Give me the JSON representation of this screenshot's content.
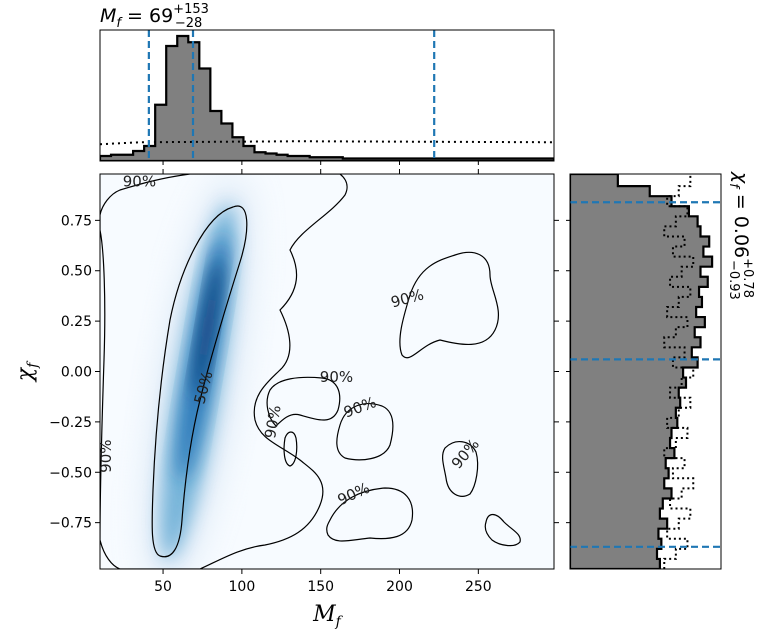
{
  "chart_data": [
    {
      "panel": "top-marginal",
      "type": "step-histogram",
      "variable": "M_f",
      "summary": {
        "median": 69,
        "plus": 153,
        "minus": 28
      },
      "summary_text": {
        "symbol": "M",
        "subscript": "f",
        "eq": " = 69",
        "sup": "+153",
        "sub": "−28"
      },
      "xlim": [
        10,
        298
      ],
      "quantile_lines": [
        41,
        69,
        222
      ],
      "posterior": {
        "edges": [
          10,
          17,
          24,
          31,
          38,
          45,
          52,
          59,
          66,
          73,
          80,
          87,
          94,
          101,
          108,
          115,
          122,
          129,
          136,
          143,
          150,
          157,
          164,
          171,
          178,
          185,
          192,
          199,
          206,
          213,
          220,
          227,
          234,
          241,
          248,
          255,
          262,
          269,
          276,
          283,
          290,
          298
        ],
        "heights": [
          0.04,
          0.05,
          0.05,
          0.08,
          0.12,
          0.45,
          0.92,
          1.0,
          0.95,
          0.74,
          0.4,
          0.3,
          0.19,
          0.12,
          0.07,
          0.06,
          0.05,
          0.04,
          0.04,
          0.03,
          0.03,
          0.03,
          0.02,
          0.02,
          0.02,
          0.02,
          0.02,
          0.02,
          0.02,
          0.02,
          0.02,
          0.02,
          0.02,
          0.02,
          0.02,
          0.02,
          0.02,
          0.02,
          0.02,
          0.02,
          0.02
        ]
      },
      "prior_level": 0.15
    },
    {
      "panel": "joint",
      "type": "density-contour",
      "xlabel": "M_f",
      "ylabel": "χ_f",
      "xlim": [
        10,
        298
      ],
      "ylim": [
        -0.98,
        0.98
      ],
      "xticks": [
        50,
        100,
        150,
        200,
        250
      ],
      "yticks": [
        0.75,
        0.5,
        0.25,
        0.0,
        -0.25,
        -0.5,
        -0.75
      ],
      "xtick_labels": [
        "50",
        "100",
        "150",
        "200",
        "250"
      ],
      "ytick_labels": [
        "0.75",
        "0.50",
        "0.25",
        "0.00",
        "−0.25",
        "−0.50",
        "−0.75"
      ],
      "density_ridge": {
        "x0": 55,
        "y0": -0.85,
        "x1": 90,
        "y1": 0.75
      },
      "contour_labels": [
        {
          "text": "90%",
          "x": 35,
          "y": 0.94,
          "angle": 0
        },
        {
          "text": "90%",
          "x": 14,
          "y": -0.42,
          "angle": -90
        },
        {
          "text": "50%",
          "x": 76,
          "y": -0.08,
          "angle": -75
        },
        {
          "text": "90%",
          "x": 120,
          "y": -0.25,
          "angle": -80
        },
        {
          "text": "90%",
          "x": 205,
          "y": 0.36,
          "angle": -15
        },
        {
          "text": "90%",
          "x": 160,
          "y": -0.03,
          "angle": 0
        },
        {
          "text": "90%",
          "x": 175,
          "y": -0.18,
          "angle": -20
        },
        {
          "text": "90%",
          "x": 171,
          "y": -0.61,
          "angle": -25
        },
        {
          "text": "90%",
          "x": 242,
          "y": -0.41,
          "angle": -50
        }
      ]
    },
    {
      "panel": "right-marginal",
      "type": "step-histogram",
      "orientation": "horizontal",
      "variable": "χ_f",
      "summary": {
        "median": 0.06,
        "plus": 0.78,
        "minus": 0.93
      },
      "summary_text": {
        "symbol": "χ",
        "subscript": "f",
        "eq": " = 0.06",
        "sup": "+0.78",
        "sub": "−0.93"
      },
      "ylim": [
        -0.98,
        0.98
      ],
      "quantile_lines": [
        0.84,
        0.06,
        -0.87
      ],
      "posterior": {
        "edges": [
          -0.98,
          -0.93,
          -0.88,
          -0.83,
          -0.78,
          -0.73,
          -0.68,
          -0.63,
          -0.58,
          -0.53,
          -0.48,
          -0.43,
          -0.38,
          -0.33,
          -0.28,
          -0.23,
          -0.18,
          -0.13,
          -0.08,
          -0.03,
          0.02,
          0.07,
          0.12,
          0.17,
          0.22,
          0.27,
          0.32,
          0.37,
          0.42,
          0.47,
          0.52,
          0.57,
          0.62,
          0.67,
          0.72,
          0.77,
          0.82,
          0.87,
          0.92,
          0.98
        ],
        "widths": [
          0.62,
          0.6,
          0.63,
          0.61,
          0.67,
          0.62,
          0.64,
          0.7,
          0.65,
          0.68,
          0.66,
          0.72,
          0.69,
          0.7,
          0.74,
          0.73,
          0.76,
          0.75,
          0.8,
          0.78,
          0.88,
          0.84,
          0.9,
          0.86,
          0.93,
          0.87,
          0.91,
          0.89,
          0.95,
          0.9,
          0.98,
          0.92,
          0.96,
          0.9,
          0.88,
          0.82,
          0.7,
          0.55,
          0.33
        ]
      },
      "prior_level": 0.75
    }
  ],
  "colors": {
    "hist_fill": "#808080",
    "hist_edge": "#000000",
    "quantile_line": "#1f77b4",
    "density_dark": "#08306b",
    "density_light": "#f7fbff"
  }
}
